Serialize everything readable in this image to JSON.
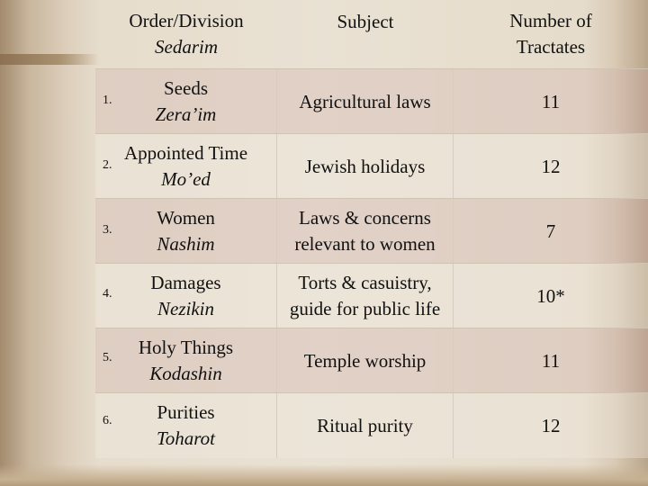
{
  "header": {
    "col1_line1": "Order/Division",
    "col1_line2": "Sedarim",
    "col2": "Subject",
    "col3_line1": "Number of",
    "col3_line2": "Tractates"
  },
  "rows": [
    {
      "num": "1.",
      "name": "Seeds",
      "hebrew": "Zera’im",
      "subject_line1": "Agricultural laws",
      "subject_line2": "",
      "count": "11"
    },
    {
      "num": "2.",
      "name": "Appointed Time",
      "hebrew": "Mo’ed",
      "subject_line1": "Jewish holidays",
      "subject_line2": "",
      "count": "12"
    },
    {
      "num": "3.",
      "name": "Women",
      "hebrew": "Nashim",
      "subject_line1": "Laws & concerns",
      "subject_line2": "relevant to women",
      "count": "7"
    },
    {
      "num": "4.",
      "name": "Damages",
      "hebrew": "Nezikin",
      "subject_line1": "Torts & casuistry,",
      "subject_line2": "guide for public life",
      "count": "10*"
    },
    {
      "num": "5.",
      "name": "Holy Things",
      "hebrew": "Kodashin",
      "subject_line1": "Temple worship",
      "subject_line2": "",
      "count": "11"
    },
    {
      "num": "6.",
      "name": "Purities",
      "hebrew": "Toharot",
      "subject_line1": "Ritual purity",
      "subject_line2": "",
      "count": "12"
    }
  ]
}
